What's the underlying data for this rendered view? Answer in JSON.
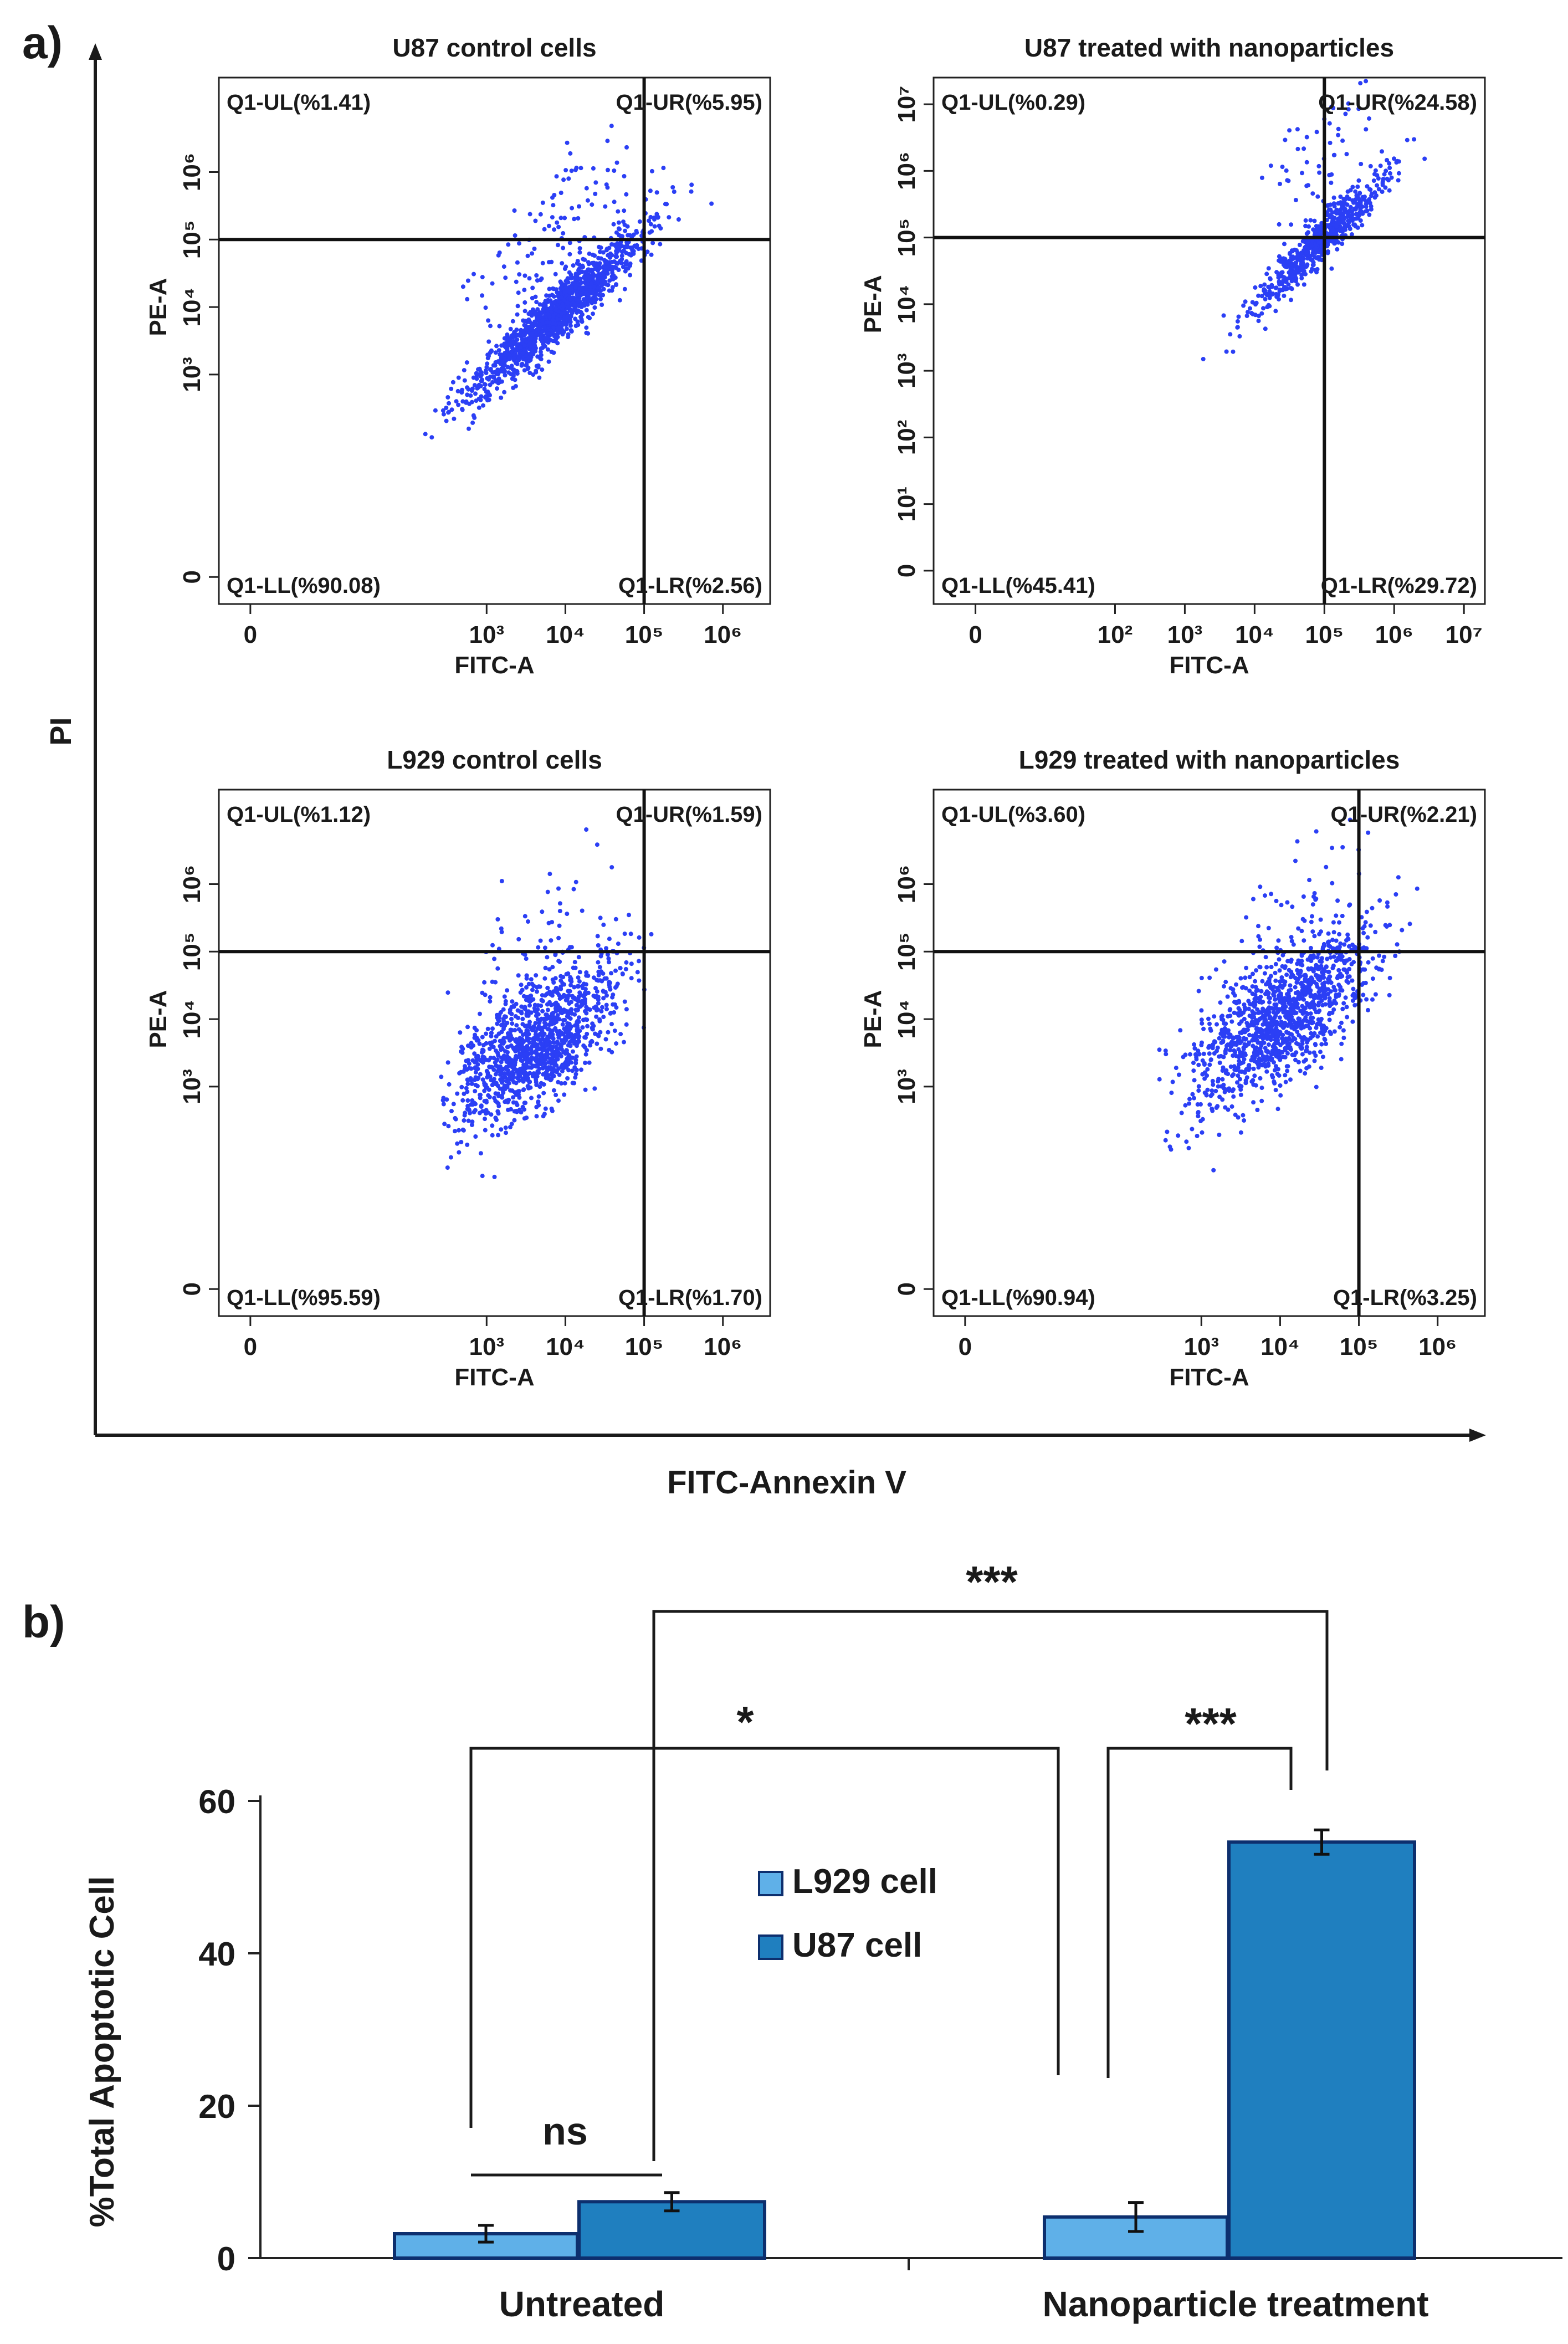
{
  "panel_a_label": "a)",
  "panel_b_label": "b)",
  "shared_y_label": "PI",
  "shared_x_label": "FITC-Annexin V",
  "chart_data": [
    {
      "type": "scatter",
      "title": "U87 control cells",
      "xlabel": "FITC-A",
      "ylabel": "PE-A",
      "x_ticks": [
        "0",
        "10³",
        "10⁴",
        "10⁵",
        "10⁶"
      ],
      "y_ticks": [
        "0",
        "10³",
        "10⁴",
        "10⁵",
        "10⁶"
      ],
      "x_tick_values": [
        0,
        3,
        4,
        5,
        6
      ],
      "y_tick_values": [
        0,
        3,
        4,
        5,
        6
      ],
      "xlim": [
        -0.4,
        6.6
      ],
      "ylim": [
        -0.4,
        7.4
      ],
      "gate": {
        "x": 5,
        "y": 5
      },
      "quadrants": {
        "UL": "Q1-UL(%1.41)",
        "UR": "Q1-UR(%5.95)",
        "LL": "Q1-LL(%90.08)",
        "LR": "Q1-LR(%2.56)"
      },
      "quadrant_values": {
        "UL": 1.41,
        "UR": 5.95,
        "LL": 90.08,
        "LR": 2.56
      },
      "cloud": {
        "seed": 11,
        "n": 1400,
        "x_mean": 3.9,
        "x_sd": 0.55,
        "slope": 1.05,
        "spread": 0.22,
        "x_min": 1.6,
        "x_max": 6.4
      }
    },
    {
      "type": "scatter",
      "title": "U87 treated with nanoparticles",
      "xlabel": "FITC-A",
      "ylabel": "PE-A",
      "x_ticks": [
        "0",
        "10²",
        "10³",
        "10⁴",
        "10⁵",
        "10⁶",
        "10⁷"
      ],
      "y_ticks": [
        "0",
        "10¹",
        "10²",
        "10³",
        "10⁴",
        "10⁵",
        "10⁶",
        "10⁷"
      ],
      "x_tick_values": [
        0,
        2,
        3,
        4,
        5,
        6,
        7
      ],
      "y_tick_values": [
        0,
        1,
        2,
        3,
        4,
        5,
        6,
        7
      ],
      "xlim": [
        -0.6,
        7.3
      ],
      "ylim": [
        -0.5,
        7.4
      ],
      "gate": {
        "x": 5,
        "y": 5
      },
      "quadrants": {
        "UL": "Q1-UL(%0.29)",
        "UR": "Q1-UR(%24.58)",
        "LL": "Q1-LL(%45.41)",
        "LR": "Q1-LR(%29.72)"
      },
      "quadrant_values": {
        "UL": 0.29,
        "UR": 24.58,
        "LL": 45.41,
        "LR": 29.72
      },
      "cloud": {
        "seed": 23,
        "n": 700,
        "x_mean": 4.9,
        "x_sd": 0.45,
        "slope": 1.0,
        "spread": 0.18,
        "x_min": 2.2,
        "x_max": 7.2
      }
    },
    {
      "type": "scatter",
      "title": "L929 control cells",
      "xlabel": "FITC-A",
      "ylabel": "PE-A",
      "x_ticks": [
        "0",
        "10³",
        "10⁴",
        "10⁵",
        "10⁶"
      ],
      "y_ticks": [
        "0",
        "10³",
        "10⁴",
        "10⁵",
        "10⁶"
      ],
      "x_tick_values": [
        0,
        3,
        4,
        5,
        6
      ],
      "y_tick_values": [
        0,
        3,
        4,
        5,
        6
      ],
      "xlim": [
        -0.4,
        6.6
      ],
      "ylim": [
        -0.4,
        7.4
      ],
      "gate": {
        "x": 5,
        "y": 5
      },
      "quadrants": {
        "UL": "Q1-UL(%1.12)",
        "UR": "Q1-UR(%1.59)",
        "LL": "Q1-LL(%95.59)",
        "LR": "Q1-LR(%1.70)"
      },
      "quadrant_values": {
        "UL": 1.12,
        "UR": 1.59,
        "LL": 95.59,
        "LR": 1.7
      },
      "cloud": {
        "seed": 37,
        "n": 1300,
        "x_mean": 3.6,
        "x_sd": 0.55,
        "slope": 0.75,
        "spread": 0.45,
        "x_min": 2.4,
        "x_max": 6.4
      }
    },
    {
      "type": "scatter",
      "title": "L929 treated with nanoparticles",
      "xlabel": "FITC-A",
      "ylabel": "PE-A",
      "x_ticks": [
        "0",
        "10³",
        "10⁴",
        "10⁵",
        "10⁶"
      ],
      "y_ticks": [
        "0",
        "10³",
        "10⁴",
        "10⁵",
        "10⁶"
      ],
      "x_tick_values": [
        0,
        3,
        4,
        5,
        6
      ],
      "y_tick_values": [
        0,
        3,
        4,
        5,
        6
      ],
      "xlim": [
        -0.4,
        6.6
      ],
      "ylim": [
        -0.4,
        7.4
      ],
      "gate": {
        "x": 5,
        "y": 5
      },
      "quadrants": {
        "UL": "Q1-UL(%3.60)",
        "UR": "Q1-UR(%2.21)",
        "LL": "Q1-LL(%90.94)",
        "LR": "Q1-LR(%3.25)"
      },
      "quadrant_values": {
        "UL": 3.6,
        "UR": 2.21,
        "LL": 90.94,
        "LR": 3.25
      },
      "cloud": {
        "seed": 53,
        "n": 1300,
        "x_mean": 4.0,
        "x_sd": 0.6,
        "slope": 0.8,
        "spread": 0.45,
        "x_min": 2.4,
        "x_max": 6.4
      }
    },
    {
      "type": "bar",
      "title": "",
      "categories": [
        "Untreated",
        "Nanoparticle treatment"
      ],
      "series": [
        {
          "name": "L929 cell",
          "values": [
            3.2,
            5.4
          ],
          "errors": [
            1.1,
            1.9
          ],
          "color": "#5fb0e8"
        },
        {
          "name": "U87 cell",
          "values": [
            7.4,
            54.6
          ],
          "errors": [
            1.2,
            1.6
          ],
          "color": "#1f7fbf"
        }
      ],
      "ylabel": "%Total Apoptotic Cell",
      "xlabel": "",
      "ylim": [
        0,
        60
      ],
      "y_ticks": [
        "0",
        "20",
        "40",
        "60"
      ],
      "legend": "center",
      "significance": [
        {
          "label": "ns",
          "between": [
            "Untreated L929",
            "Untreated U87"
          ]
        },
        {
          "label": "*",
          "between": [
            "Untreated L929",
            "Treated L929"
          ]
        },
        {
          "label": "***",
          "between": [
            "Untreated U87",
            "Treated U87"
          ]
        },
        {
          "label": "***",
          "between": [
            "Treated L929",
            "Treated U87"
          ]
        }
      ]
    }
  ]
}
